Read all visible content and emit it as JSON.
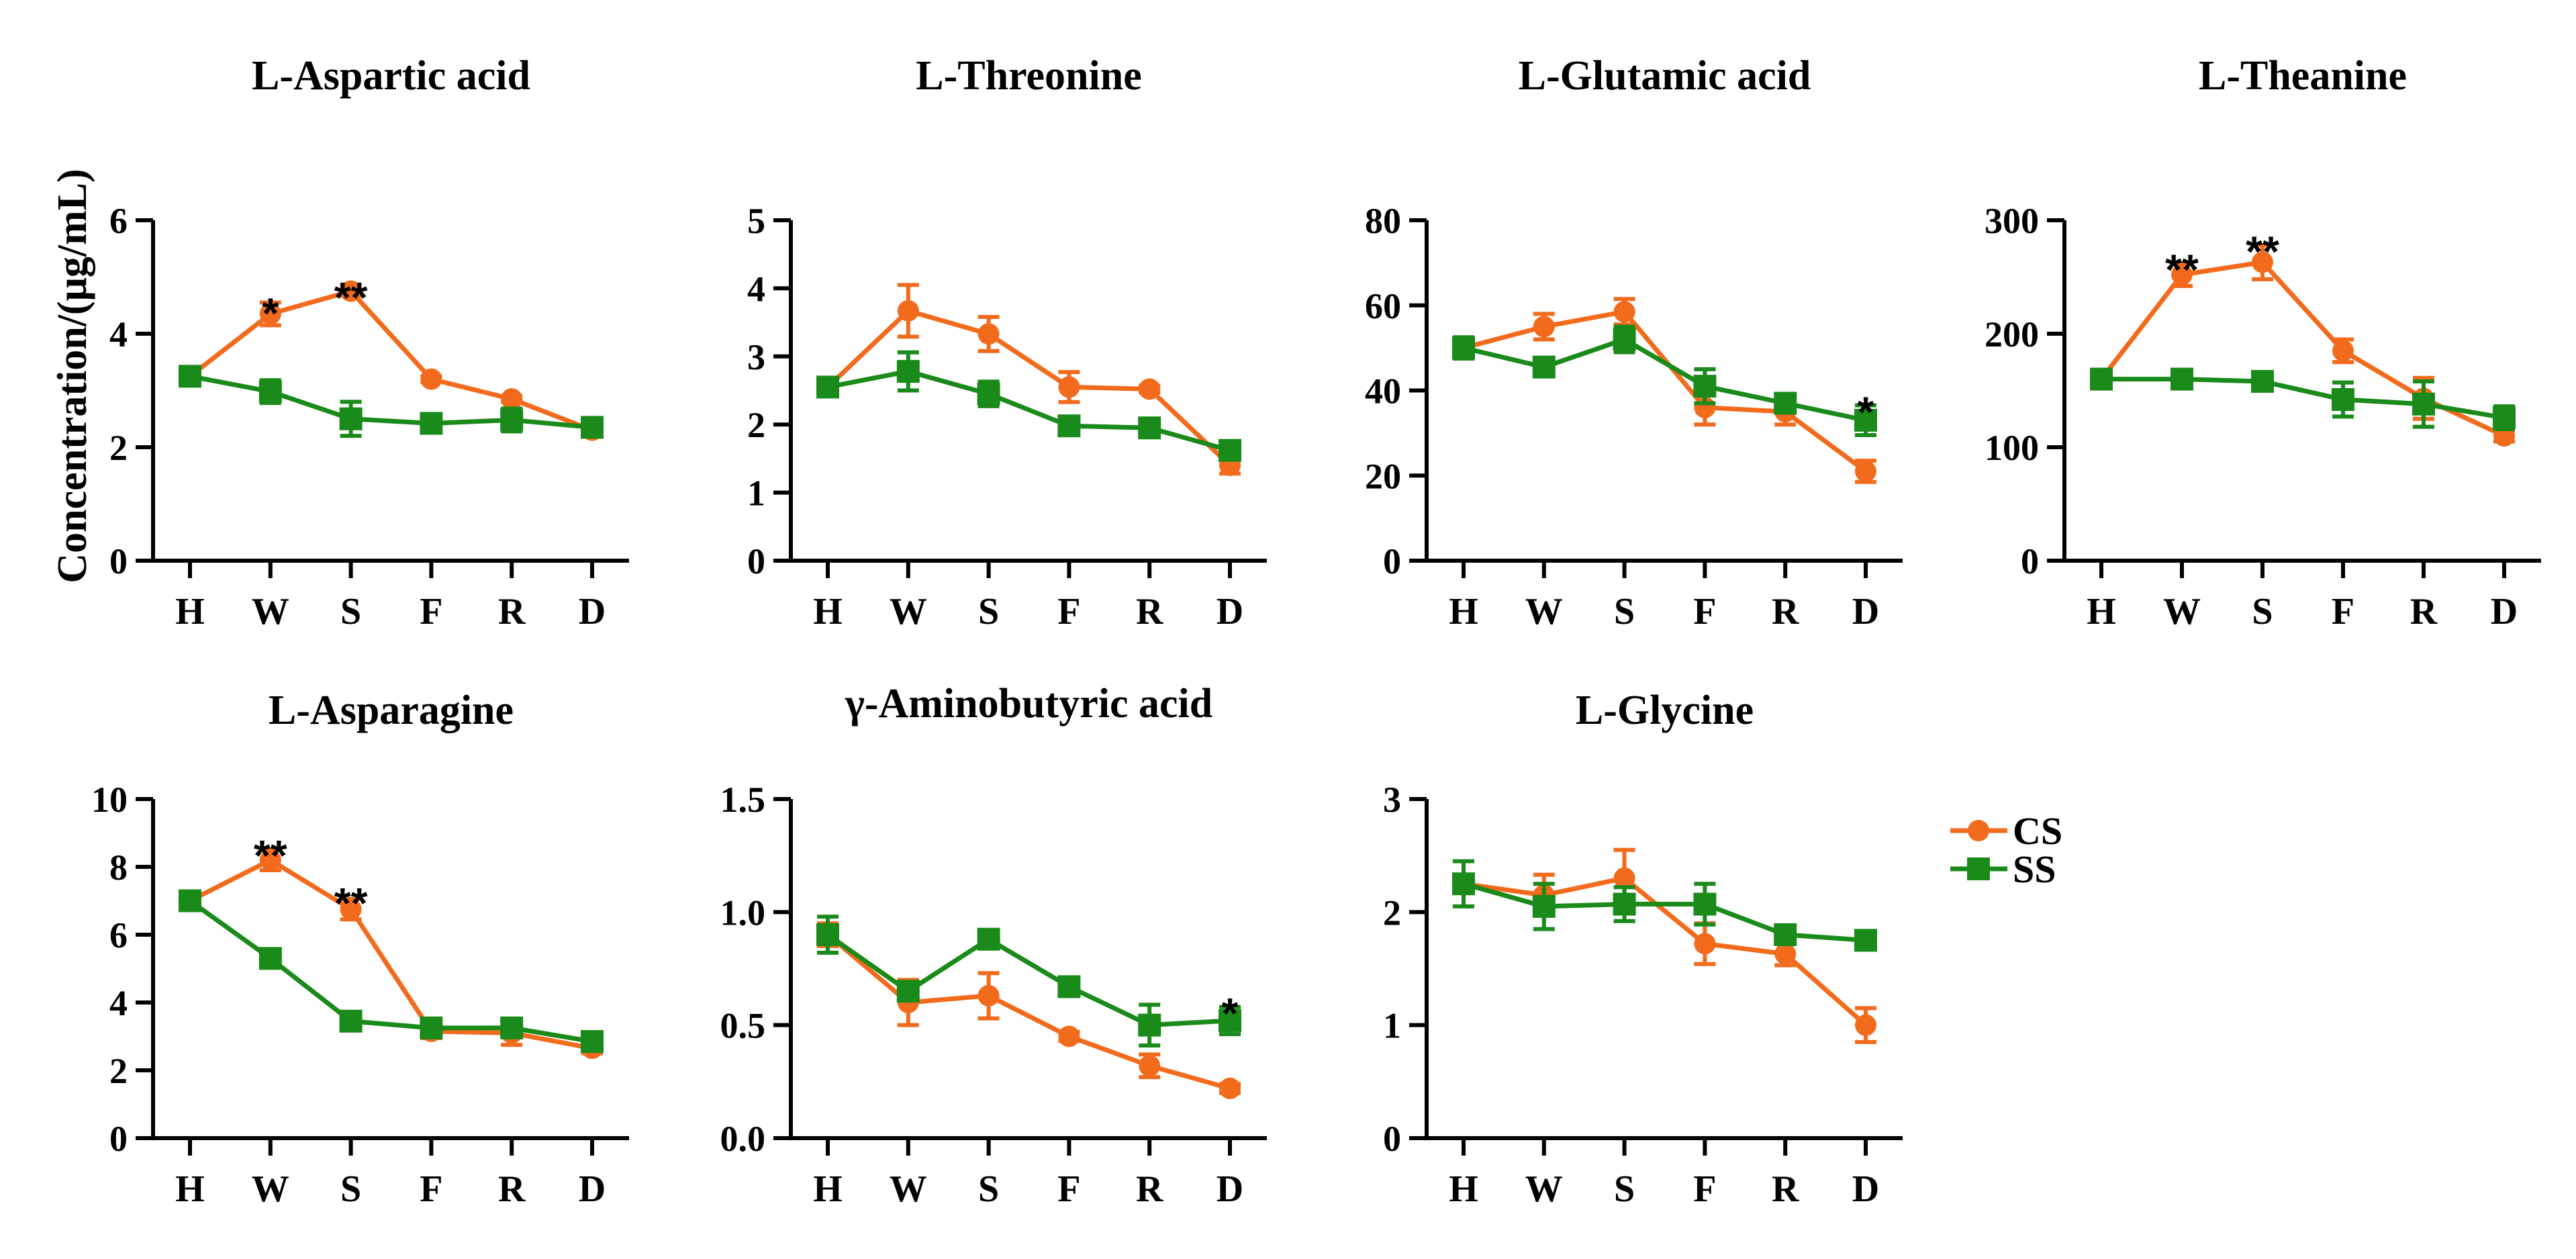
{
  "figure": {
    "ylabel": "Concentration/(μg/mL)",
    "legend": [
      {
        "name": "CS",
        "color": "#F26B1D",
        "marker": "circle"
      },
      {
        "name": "SS",
        "color": "#1A8A1A",
        "marker": "square"
      }
    ]
  },
  "chart_data": [
    {
      "type": "line",
      "title": "L-Aspartic acid",
      "categories": [
        "H",
        "W",
        "S",
        "F",
        "R",
        "D"
      ],
      "ylim": [
        0,
        6
      ],
      "yticks": [
        "0",
        "2",
        "4",
        "6"
      ],
      "series": [
        {
          "name": "CS",
          "values": [
            3.25,
            4.35,
            4.75,
            3.2,
            2.85,
            2.3
          ],
          "errors": [
            0.05,
            0.2,
            0.08,
            0.05,
            0.05,
            0.1
          ]
        },
        {
          "name": "SS",
          "values": [
            3.25,
            2.98,
            2.5,
            2.42,
            2.48,
            2.35
          ],
          "errors": [
            0.05,
            0.2,
            0.3,
            0.08,
            0.2,
            0.15
          ]
        }
      ],
      "annotations": [
        {
          "category": "W",
          "value": 4.55,
          "text": "*"
        },
        {
          "category": "S",
          "value": 4.83,
          "text": "**"
        }
      ]
    },
    {
      "type": "line",
      "title": "L-Threonine",
      "categories": [
        "H",
        "W",
        "S",
        "F",
        "R",
        "D"
      ],
      "ylim": [
        0,
        5
      ],
      "yticks": [
        "0",
        "1",
        "2",
        "3",
        "4",
        "5"
      ],
      "series": [
        {
          "name": "CS",
          "values": [
            2.55,
            3.67,
            3.33,
            2.55,
            2.52,
            1.4
          ],
          "errors": [
            0.1,
            0.38,
            0.25,
            0.22,
            0.05,
            0.12
          ]
        },
        {
          "name": "SS",
          "values": [
            2.55,
            2.78,
            2.45,
            1.98,
            1.95,
            1.62
          ],
          "errors": [
            0.1,
            0.28,
            0.18,
            0.08,
            0.05,
            0.1
          ]
        }
      ],
      "annotations": []
    },
    {
      "type": "line",
      "title": "L-Glutamic acid",
      "categories": [
        "H",
        "W",
        "S",
        "F",
        "R",
        "D"
      ],
      "ylim": [
        0,
        80
      ],
      "yticks": [
        "0",
        "20",
        "40",
        "60",
        "80"
      ],
      "series": [
        {
          "name": "CS",
          "values": [
            50,
            55,
            58.5,
            36,
            35,
            21
          ],
          "errors": [
            1.5,
            3,
            3,
            4,
            3,
            2.5
          ]
        },
        {
          "name": "SS",
          "values": [
            50,
            45.5,
            52,
            41,
            37,
            33
          ],
          "errors": [
            2.5,
            1.5,
            3,
            4,
            1.5,
            3.5
          ]
        }
      ],
      "annotations": [
        {
          "category": "D",
          "value": 37.5,
          "text": "*"
        }
      ]
    },
    {
      "type": "line",
      "title": "L-Theanine",
      "categories": [
        "H",
        "W",
        "S",
        "F",
        "R",
        "D"
      ],
      "ylim": [
        0,
        300
      ],
      "yticks": [
        "0",
        "100",
        "200",
        "300"
      ],
      "series": [
        {
          "name": "CS",
          "values": [
            160,
            252,
            263,
            185,
            143,
            110
          ],
          "errors": [
            4,
            10,
            15,
            10,
            18,
            5
          ]
        },
        {
          "name": "SS",
          "values": [
            160,
            160,
            158,
            142,
            138,
            126
          ],
          "errors": [
            4,
            4,
            4,
            15,
            20,
            10
          ]
        }
      ],
      "annotations": [
        {
          "category": "W",
          "value": 266,
          "text": "**"
        },
        {
          "category": "S",
          "value": 282,
          "text": "**"
        }
      ]
    },
    {
      "type": "line",
      "title": "L-Asparagine",
      "categories": [
        "H",
        "W",
        "S",
        "F",
        "R",
        "D"
      ],
      "ylim": [
        0,
        10
      ],
      "yticks": [
        "0",
        "2",
        "4",
        "6",
        "8",
        "10"
      ],
      "series": [
        {
          "name": "CS",
          "values": [
            7.0,
            8.2,
            6.75,
            3.15,
            3.1,
            2.65
          ],
          "errors": [
            0.15,
            0.3,
            0.3,
            0.2,
            0.35,
            0.15
          ]
        },
        {
          "name": "SS",
          "values": [
            7.0,
            5.3,
            3.45,
            3.25,
            3.25,
            2.85
          ],
          "errors": [
            0.25,
            0.25,
            0.15,
            0.15,
            0.15,
            0.1
          ]
        }
      ],
      "annotations": [
        {
          "category": "W",
          "value": 8.65,
          "text": "**"
        },
        {
          "category": "S",
          "value": 7.25,
          "text": "**"
        }
      ]
    },
    {
      "type": "line",
      "title": "γ-Aminobutyric acid",
      "categories": [
        "H",
        "W",
        "S",
        "F",
        "R",
        "D"
      ],
      "ylim": [
        0,
        1.5
      ],
      "yticks": [
        "0.0",
        "0.5",
        "1.0",
        "1.5"
      ],
      "series": [
        {
          "name": "CS",
          "values": [
            0.9,
            0.6,
            0.63,
            0.45,
            0.32,
            0.22
          ],
          "errors": [
            0.05,
            0.1,
            0.1,
            0.02,
            0.05,
            0.02
          ]
        },
        {
          "name": "SS",
          "values": [
            0.9,
            0.65,
            0.88,
            0.67,
            0.5,
            0.52
          ],
          "errors": [
            0.08,
            0.03,
            0.03,
            0.02,
            0.09,
            0.06
          ]
        }
      ],
      "annotations": [
        {
          "category": "D",
          "value": 0.6,
          "text": "*"
        }
      ]
    },
    {
      "type": "line",
      "title": "L-Glycine",
      "categories": [
        "H",
        "W",
        "S",
        "F",
        "R",
        "D"
      ],
      "ylim": [
        0,
        3
      ],
      "yticks": [
        "0",
        "1",
        "2",
        "3"
      ],
      "series": [
        {
          "name": "CS",
          "values": [
            2.25,
            2.15,
            2.3,
            1.72,
            1.63,
            1.0
          ],
          "errors": [
            0.05,
            0.18,
            0.25,
            0.18,
            0.1,
            0.15
          ]
        },
        {
          "name": "SS",
          "values": [
            2.25,
            2.05,
            2.07,
            2.07,
            1.8,
            1.75
          ],
          "errors": [
            0.2,
            0.2,
            0.15,
            0.18,
            0.05,
            0.05
          ]
        }
      ],
      "annotations": []
    }
  ]
}
